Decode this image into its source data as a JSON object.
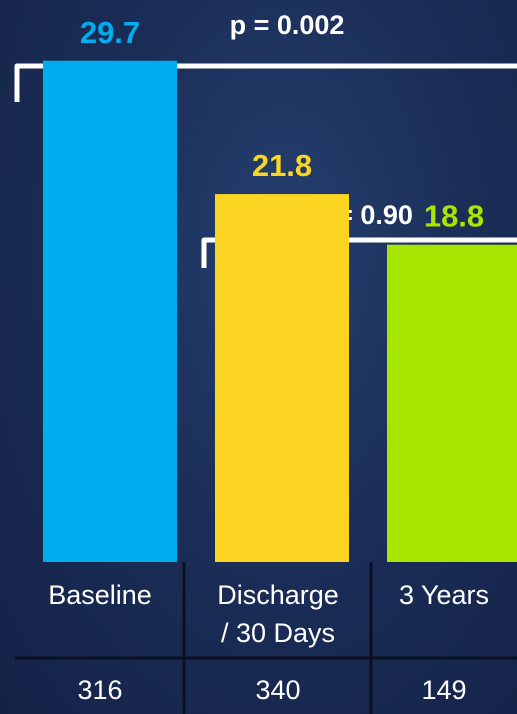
{
  "chart_data": {
    "type": "bar",
    "categories": [
      "Baseline",
      "Discharge / 30 Days",
      "3 Years"
    ],
    "category_lines": [
      [
        "Baseline"
      ],
      [
        "Discharge",
        "/ 30 Days"
      ],
      [
        "3 Years"
      ]
    ],
    "values": [
      29.7,
      21.8,
      18.8
    ],
    "value_labels": [
      "29.7",
      "21.8",
      "18.8"
    ],
    "colors": [
      "#00aeef",
      "#fcd422",
      "#a6e600"
    ],
    "ylim": [
      0,
      33.3
    ],
    "grid": false,
    "counts": [
      "316",
      "340",
      "149"
    ],
    "comparisons": [
      {
        "label": "p = 0.002",
        "from": "Baseline",
        "to": "3 Years"
      },
      {
        "label": "p = 0.90",
        "from": "Discharge / 30 Days",
        "to": "3 Years"
      }
    ]
  }
}
